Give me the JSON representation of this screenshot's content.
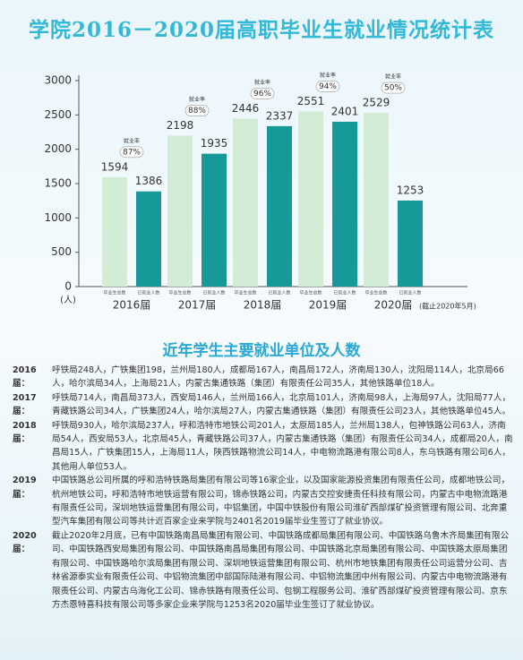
{
  "chart_data": {
    "type": "bar",
    "title": "学院2016－2020届高职毕业生就业情况统计表",
    "categories": [
      "2016届",
      "2017届",
      "2018届",
      "2019届",
      "2020届"
    ],
    "series": [
      {
        "name": "毕业生总数",
        "color": "#d3ecd5",
        "values": [
          1594,
          2198,
          2446,
          2551,
          2529
        ]
      },
      {
        "name": "已就业人数",
        "color": "#17999a",
        "values": [
          1386,
          1935,
          2337,
          2401,
          1253
        ]
      }
    ],
    "rates": {
      "label": "就业率",
      "values": [
        87,
        88,
        96,
        94,
        50
      ],
      "value_labels": [
        "87%",
        "88%",
        "96%",
        "94%",
        "50%"
      ]
    },
    "ylabel": "(人)",
    "note": "(截止2020年5月)",
    "ylim": [
      0,
      3000
    ],
    "yticks": [
      0,
      500,
      1000,
      1500,
      2000,
      2500,
      3000
    ]
  },
  "section_title": "近年学生主要就业单位及人数",
  "employers": [
    {
      "year": "2016届：",
      "text": "呼铁局248人，广铁集团198，兰州局180人，成都局167人，南昌局172人，济南局130人，沈阳局114人，北京局66人，哈尔滨局34人，上海局21人，内蒙古集通铁路（集团）有限责任公司35人，其他铁路单位18人。"
    },
    {
      "year": "2017届：",
      "text": "呼铁局714人，南昌局373人，西安局146人，兰州局166人，北京局101人，济南局98人，上海局97人，沈阳局77人，青藏铁路公司34人，广铁集团24人，哈尔滨局27人，内蒙古集通铁路（集团）有限责任公司23人，其他铁路单位45人。"
    },
    {
      "year": "2018届：",
      "text": "呼铁局930人，哈尔滨局237人，呼和浩特市地铁公司201人，太原局185人，兰州局138人，包神铁路公司63人，济南局54人，西安局53人，北京局45人，青藏铁路公司37人，内蒙古集通铁路（集团）有限责任公司34人，成都局20人，南昌局15人，广铁集团15人，上海局11人，陕西铁路物流公司14人，中电物流路港有限公司8人，东乌铁路有限公司6人，其他用人单位53人。"
    },
    {
      "year": "2019届：",
      "text": "中国铁路总公司所属的呼和浩特铁路局集团有限公司等16家企业，以及国家能源投资集团有限责任公司，成都地铁公司，杭州地铁公司，呼和浩特市地铁运营有限公司，锦赤铁路公司，内蒙古交控安捷责任科技有限公司，内蒙古中电物流路港有限责任公司，深圳地铁运营集团有限公司，中铝集团，中国中铁股份有限公司淮矿西部煤矿投资管理有限公司、北奔重型汽车集团有限公司等共计近百家企业来学院与2401名2019届毕业生签订了就业协议。"
    },
    {
      "year": "2020届：",
      "text": "截止2020年2月底，已有中国铁路南昌局集团有限公司、中国铁路成都局集团有限公司、中国铁路乌鲁木齐局集团有限公司、中国铁路西安局集团有限公司、中国铁路南昌局集团有限公司、中国铁路北京局集团有限公司、中国铁路太原局集团有限公司、中国铁路哈尔滨局集团有限公司、深圳地铁运营集团有限公司、杭州市地铁集团有限责任公司运营分公司、吉林省源泰实业有限责任公司、中铝物流集团中部国际陆港有限公司、中铝物流集团中州有限公司、内蒙古中电物流路港有限责任公司、内蒙古乌海化工公司、锦赤铁路有限责任公司、包钢工程服务公司、淮矿西部煤矿投资管理有限公司、京东方杰恩特喜科技有限公司等多家企业来学院与1253名2020届毕业生签订了就业协议。"
    }
  ]
}
